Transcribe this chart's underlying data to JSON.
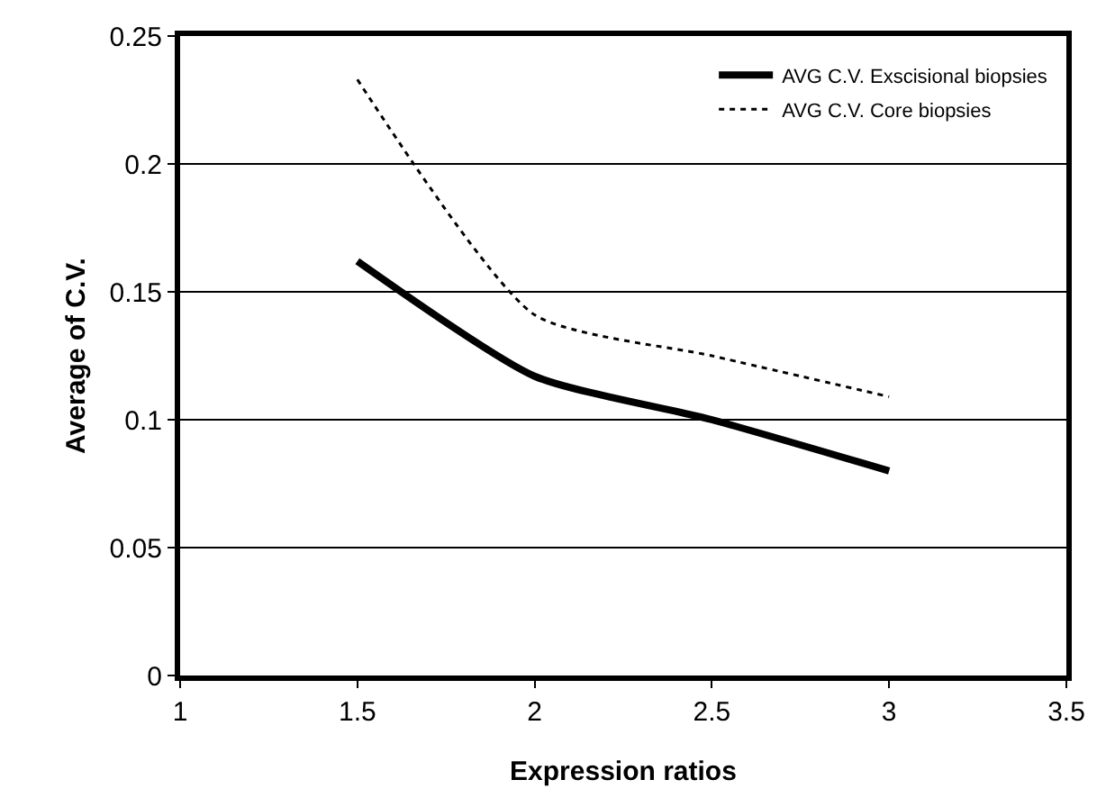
{
  "chart_data": {
    "type": "line",
    "xlabel": "Expression ratios",
    "ylabel": "Average of C.V.",
    "x": [
      1.5,
      2,
      2.5,
      3
    ],
    "series": [
      {
        "name": "AVG C.V. Exscisional biopsies",
        "color": "#000000",
        "values": [
          0.162,
          0.117,
          0.1,
          0.08
        ],
        "line_style": "solid"
      },
      {
        "name": "AVG C.V. Core biopsies",
        "color": "#000000",
        "values": [
          0.233,
          0.141,
          0.125,
          0.109
        ],
        "line_style": "dotted"
      }
    ],
    "xlim": [
      1,
      3.5
    ],
    "xticks": [
      1,
      1.5,
      2,
      2.5,
      3,
      3.5
    ],
    "ylim": [
      0,
      0.25
    ],
    "yticks": [
      0,
      0.05,
      0.1,
      0.15,
      0.2,
      0.25
    ],
    "grid": "y",
    "legend": "top right",
    "marker": "none"
  }
}
